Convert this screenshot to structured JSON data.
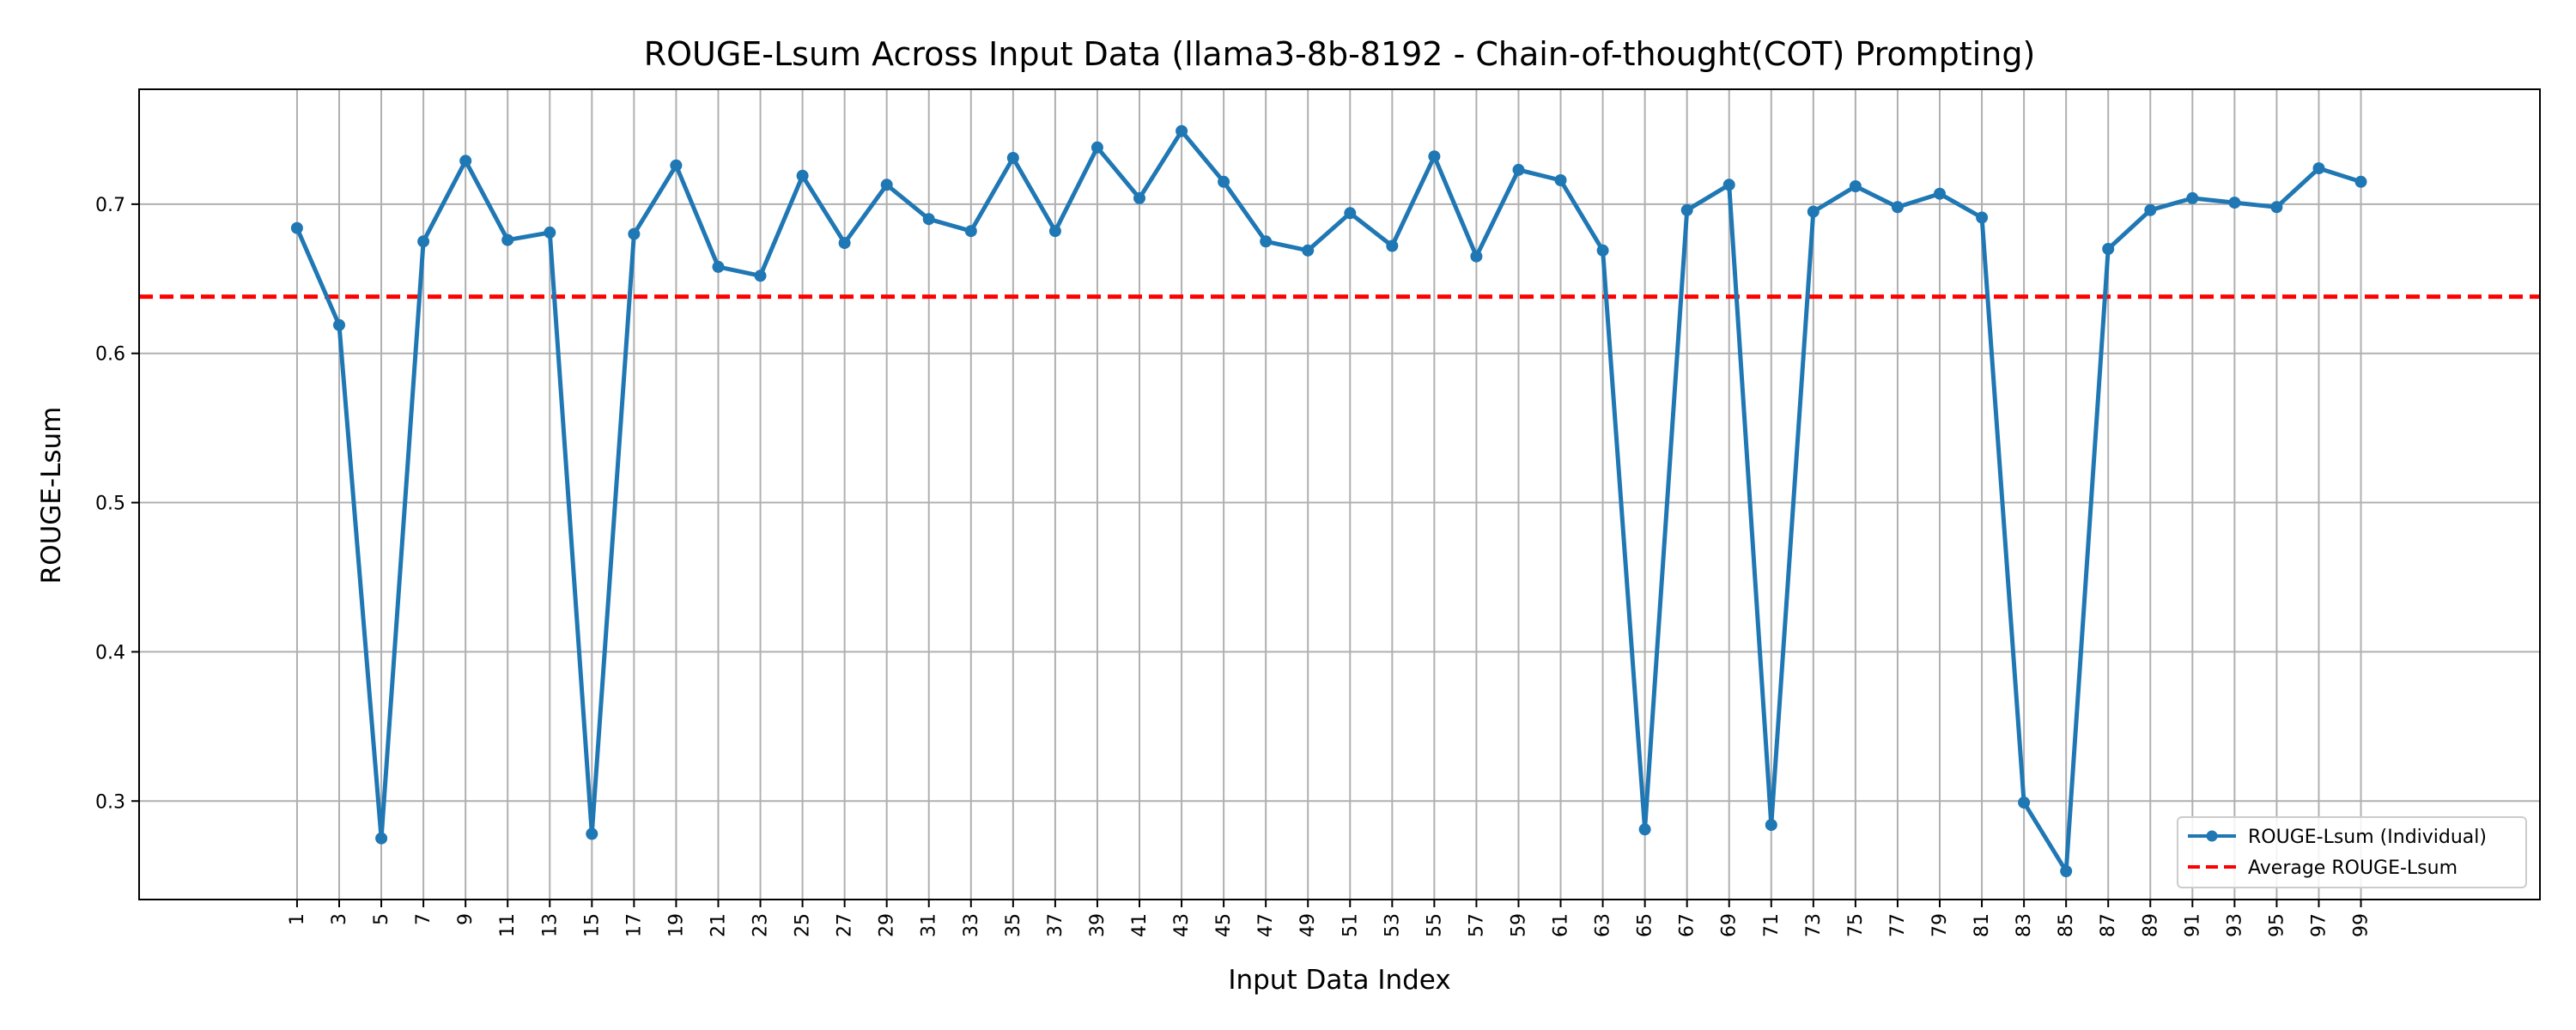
{
  "chart_data": {
    "type": "line",
    "title": "ROUGE-Lsum Across Input Data (llama3-8b-8192 - Chain-of-thought(COT) Prompting)",
    "xlabel": "Input Data Index",
    "ylabel": "ROUGE-Lsum",
    "x": [
      1,
      3,
      5,
      7,
      9,
      11,
      13,
      15,
      17,
      19,
      21,
      23,
      25,
      27,
      29,
      31,
      33,
      35,
      37,
      39,
      41,
      43,
      45,
      47,
      49,
      51,
      53,
      55,
      57,
      59,
      61,
      63,
      65,
      67,
      69,
      71,
      73,
      75,
      77,
      79,
      81,
      83,
      85,
      87,
      89,
      91,
      93,
      95,
      97,
      99
    ],
    "x_tick_labels": [
      "1",
      "3",
      "5",
      "7",
      "9",
      "11",
      "13",
      "15",
      "17",
      "19",
      "21",
      "23",
      "25",
      "27",
      "29",
      "31",
      "33",
      "35",
      "37",
      "39",
      "41",
      "43",
      "45",
      "47",
      "49",
      "51",
      "53",
      "55",
      "57",
      "59",
      "61",
      "63",
      "65",
      "67",
      "69",
      "71",
      "73",
      "75",
      "77",
      "79",
      "81",
      "83",
      "85",
      "87",
      "89",
      "91",
      "93",
      "95",
      "97",
      "99"
    ],
    "y_ticks": [
      0.3,
      0.4,
      0.5,
      0.6,
      0.7
    ],
    "y_tick_labels": [
      "0.3",
      "0.4",
      "0.5",
      "0.6",
      "0.7"
    ],
    "xlim": [
      -6.5,
      107.5
    ],
    "ylim": [
      0.234,
      0.777
    ],
    "grid": true,
    "legend_position": "bottom-right",
    "series": [
      {
        "name": "ROUGE-Lsum (Individual)",
        "color": "#1f77b4",
        "style": "solid-with-markers",
        "values": [
          0.684,
          0.619,
          0.275,
          0.675,
          0.729,
          0.676,
          0.681,
          0.278,
          0.68,
          0.726,
          0.658,
          0.652,
          0.719,
          0.674,
          0.713,
          0.69,
          0.682,
          0.731,
          0.682,
          0.738,
          0.704,
          0.749,
          0.715,
          0.675,
          0.669,
          0.694,
          0.672,
          0.732,
          0.665,
          0.723,
          0.716,
          0.669,
          0.281,
          0.696,
          0.713,
          0.284,
          0.695,
          0.712,
          0.698,
          0.707,
          0.691,
          0.299,
          0.253,
          0.67,
          0.696,
          0.704,
          0.701,
          0.698,
          0.724,
          0.715
        ]
      }
    ],
    "reference_lines": [
      {
        "name": "Average ROUGE-Lsum",
        "y": 0.638,
        "color": "#ff0000",
        "style": "dashed"
      }
    ]
  }
}
